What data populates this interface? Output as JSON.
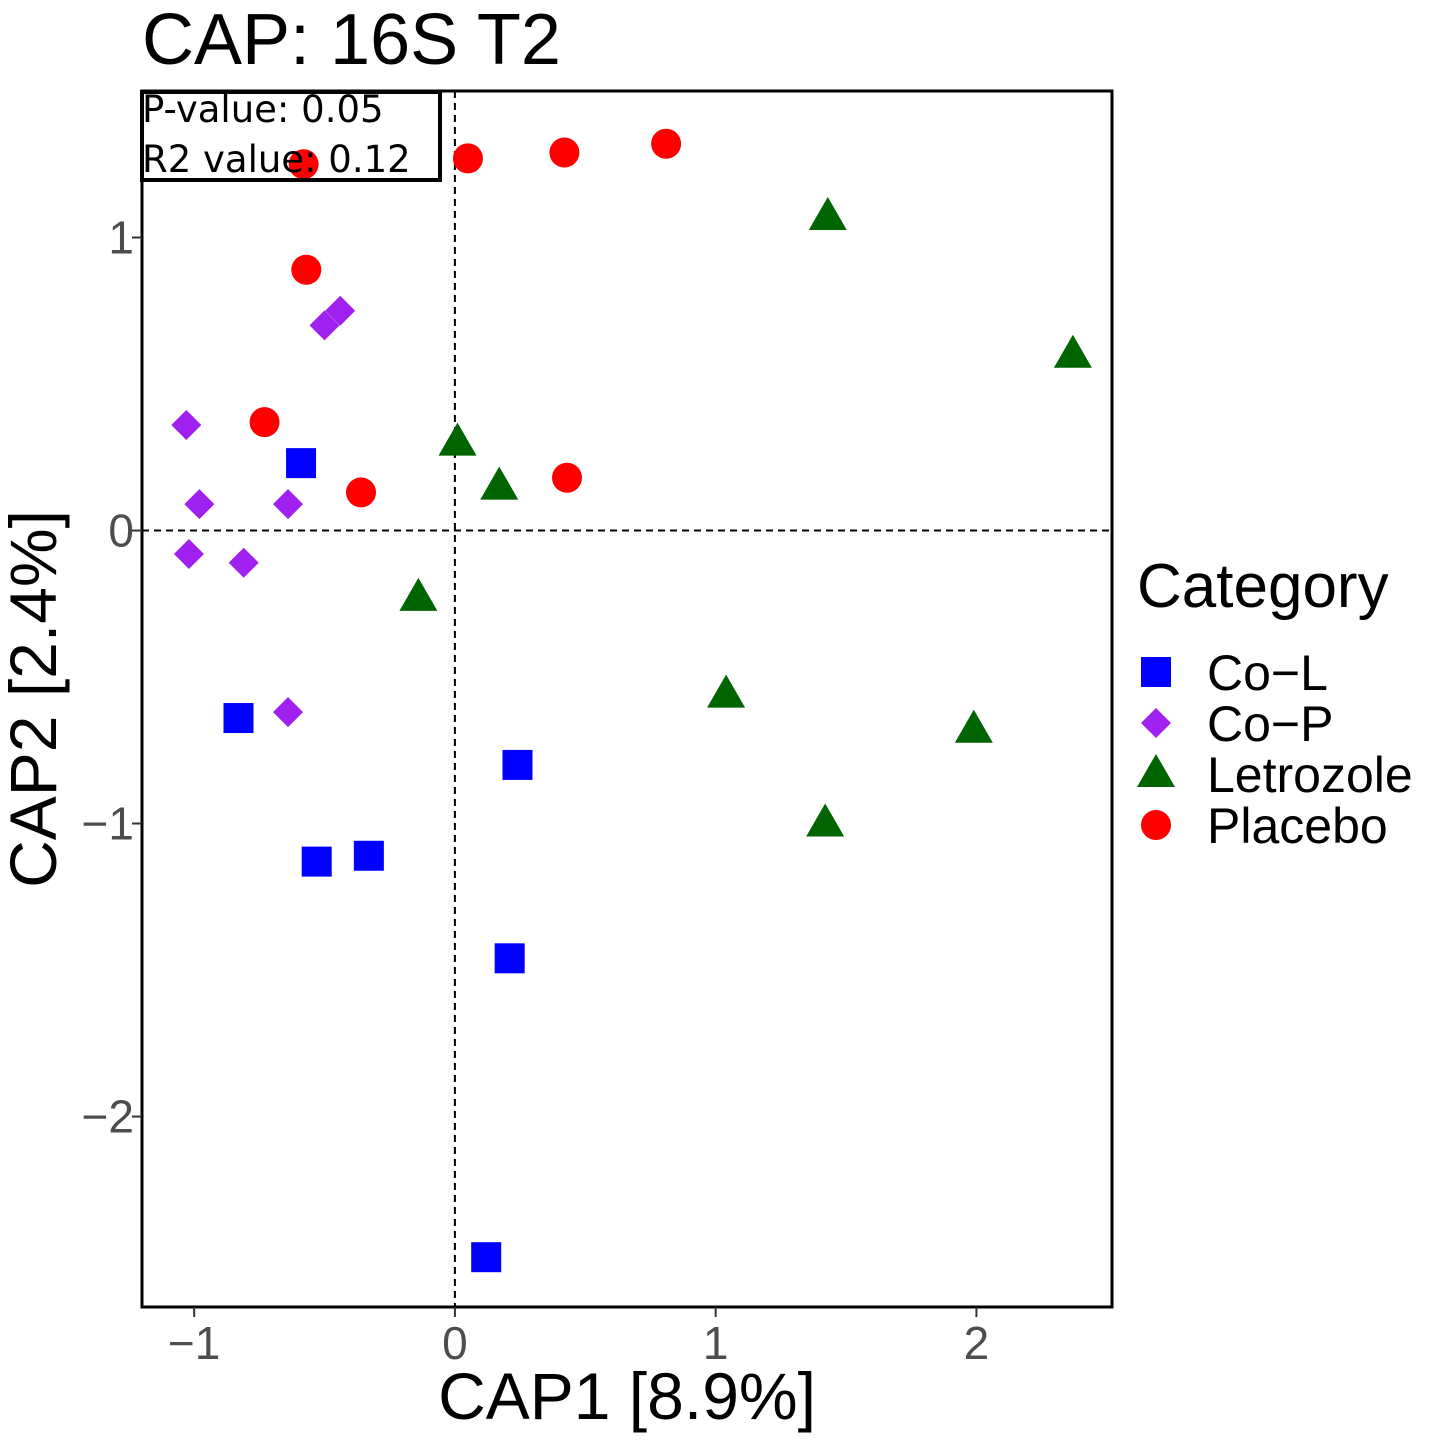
{
  "chart_data": {
    "type": "scatter",
    "title": "CAP: 16S T2",
    "xlabel": "CAP1   [8.9%]",
    "ylabel": "CAP2   [2.4%]",
    "xlim": [
      -1.2,
      2.52
    ],
    "ylim": [
      -2.65,
      1.5
    ],
    "x_ticks": [
      -1,
      0,
      1,
      2
    ],
    "x_tick_labels": [
      "−1",
      "0",
      "1",
      "2"
    ],
    "y_ticks": [
      -2,
      -1,
      0,
      1
    ],
    "y_tick_labels": [
      "−2",
      "−1",
      "0",
      "1"
    ],
    "reference_lines": {
      "x": 0,
      "y": 0,
      "style": "dashed"
    },
    "grid": false,
    "annotation": {
      "p_value": "P-value: 0.05",
      "r2_value": "R2 value: 0.12"
    },
    "legend": {
      "title": "Category",
      "position": "right"
    },
    "series": [
      {
        "name": "Co−L",
        "shape": "square",
        "color": "#0000FF",
        "points": [
          {
            "x": -0.59,
            "y": 0.23
          },
          {
            "x": -0.83,
            "y": -0.64
          },
          {
            "x": 0.24,
            "y": -0.8
          },
          {
            "x": -0.53,
            "y": -1.13
          },
          {
            "x": -0.33,
            "y": -1.11
          },
          {
            "x": 0.21,
            "y": -1.46
          },
          {
            "x": 0.12,
            "y": -2.48
          }
        ]
      },
      {
        "name": "Co−P",
        "shape": "diamond",
        "color": "#A020F0",
        "points": [
          {
            "x": -0.44,
            "y": 0.75
          },
          {
            "x": -0.5,
            "y": 0.7
          },
          {
            "x": -1.03,
            "y": 0.36
          },
          {
            "x": -0.98,
            "y": 0.09
          },
          {
            "x": -0.64,
            "y": 0.09
          },
          {
            "x": -1.02,
            "y": -0.08
          },
          {
            "x": -0.81,
            "y": -0.11
          },
          {
            "x": -0.64,
            "y": -0.62
          }
        ]
      },
      {
        "name": "Letrozole",
        "shape": "triangle",
        "color": "#006400",
        "points": [
          {
            "x": 1.43,
            "y": 1.07
          },
          {
            "x": 2.37,
            "y": 0.6
          },
          {
            "x": 0.01,
            "y": 0.3
          },
          {
            "x": 0.17,
            "y": 0.15
          },
          {
            "x": -0.14,
            "y": -0.23
          },
          {
            "x": 1.04,
            "y": -0.56
          },
          {
            "x": 1.99,
            "y": -0.68
          },
          {
            "x": 1.42,
            "y": -1.0
          }
        ]
      },
      {
        "name": "Placebo",
        "shape": "circle",
        "color": "#FF0000",
        "points": [
          {
            "x": 0.81,
            "y": 1.32
          },
          {
            "x": 0.42,
            "y": 1.29
          },
          {
            "x": 0.05,
            "y": 1.27
          },
          {
            "x": -0.58,
            "y": 1.25
          },
          {
            "x": -0.57,
            "y": 0.89
          },
          {
            "x": -0.73,
            "y": 0.37
          },
          {
            "x": -0.36,
            "y": 0.13
          },
          {
            "x": 0.43,
            "y": 0.18
          }
        ]
      }
    ]
  }
}
